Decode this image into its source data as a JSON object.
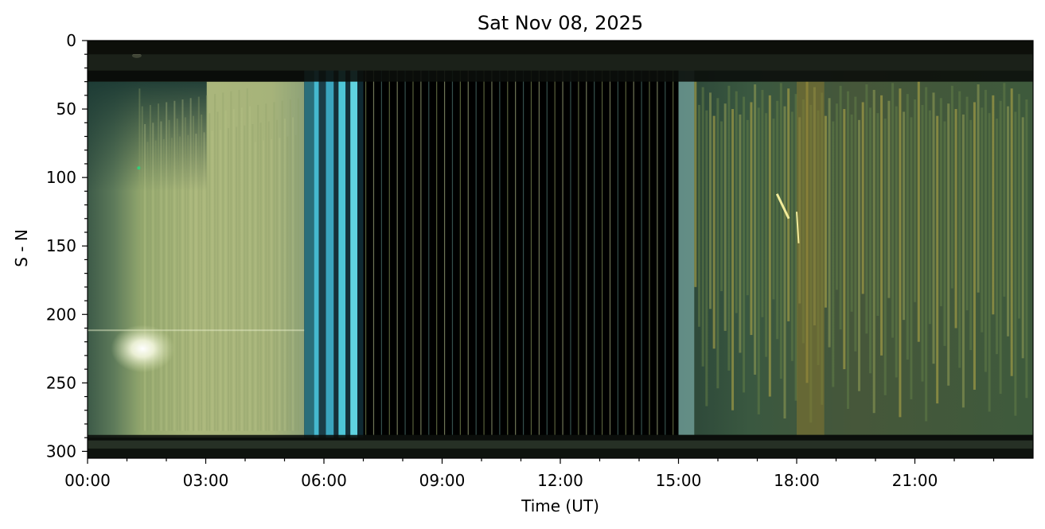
{
  "chart_data": {
    "type": "heatmap",
    "title": "Sat Nov 08, 2025",
    "xlabel": "Time (UT)",
    "ylabel": "S - N",
    "x_ticks": [
      "00:00",
      "03:00",
      "06:00",
      "09:00",
      "12:00",
      "15:00",
      "18:00",
      "21:00"
    ],
    "x_tick_hours": [
      0,
      3,
      6,
      9,
      12,
      15,
      18,
      21
    ],
    "y_ticks": [
      0,
      50,
      100,
      150,
      200,
      250,
      300
    ],
    "xlim_hours": [
      0,
      24
    ],
    "ylim": [
      305,
      0
    ],
    "y_inverted": true,
    "grid": false,
    "colors": {
      "background": "#ffffff",
      "no_data": "#000000",
      "aurora_bright": "#a9b579",
      "aurora_dark": "#22382f",
      "twilight_blue": "#3fb4cc",
      "dawn_green": "#2e4d3c"
    },
    "segments": [
      {
        "start_hour": 0.0,
        "end_hour": 5.5,
        "appearance": "bright yellow-green aurora"
      },
      {
        "start_hour": 5.5,
        "end_hour": 7.0,
        "appearance": "cyan twilight bands"
      },
      {
        "start_hour": 7.0,
        "end_hour": 15.0,
        "appearance": "dark, no data with thin vertical streaks"
      },
      {
        "start_hour": 15.0,
        "end_hour": 24.0,
        "appearance": "dark green with yellow-olive aurora streaks"
      }
    ]
  }
}
